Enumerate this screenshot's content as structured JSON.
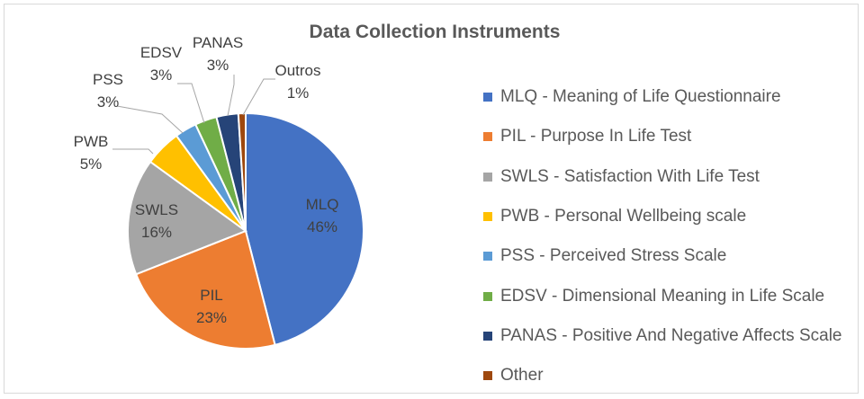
{
  "chart_data": {
    "type": "pie",
    "title": "Data Collection Instruments",
    "slices": [
      {
        "label": "MLQ",
        "value": 46,
        "value_label": "46%",
        "legend": "MLQ - Meaning of Life Questionnaire",
        "color": "#4472C4"
      },
      {
        "label": "PIL",
        "value": 23,
        "value_label": "23%",
        "legend": "PIL - Purpose In Life Test",
        "color": "#ED7D31"
      },
      {
        "label": "SWLS",
        "value": 16,
        "value_label": "16%",
        "legend": "SWLS - Satisfaction With Life Test",
        "color": "#A5A5A5"
      },
      {
        "label": "PWB",
        "value": 5,
        "value_label": "5%",
        "legend": "PWB - Personal Wellbeing scale",
        "color": "#FFC000"
      },
      {
        "label": "PSS",
        "value": 3,
        "value_label": "3%",
        "legend": "PSS - Perceived Stress Scale",
        "color": "#5B9BD5"
      },
      {
        "label": "EDSV",
        "value": 3,
        "value_label": "3%",
        "legend": "EDSV  - Dimensional Meaning in Life Scale",
        "color": "#70AD47"
      },
      {
        "label": "PANAS",
        "value": 3,
        "value_label": "3%",
        "legend": "PANAS - Positive And Negative Affects Scale",
        "color": "#264478"
      },
      {
        "label": "Outros",
        "value": 1,
        "value_label": "1%",
        "legend": "Other",
        "color": "#9E480E"
      }
    ],
    "legend_position": "right"
  }
}
